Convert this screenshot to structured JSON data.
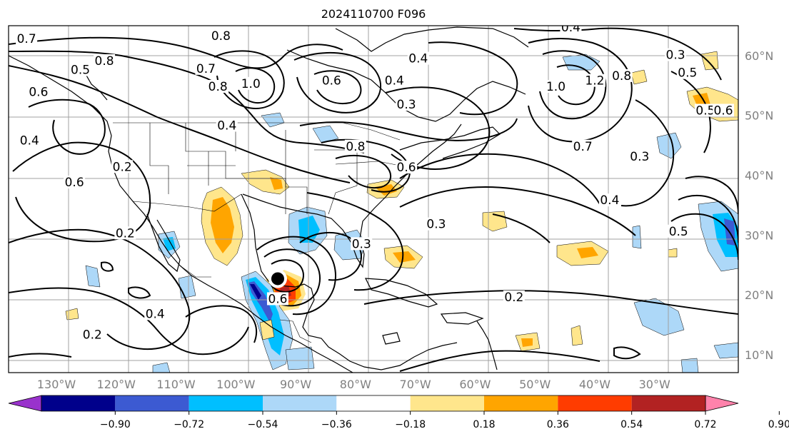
{
  "title": "2024110700 F096",
  "map": {
    "projection": "PlateCarree",
    "lon_range": [
      -138,
      -16
    ],
    "lat_range": [
      7,
      65
    ],
    "longitude_labels": [
      {
        "lon": -130,
        "text": "130°W"
      },
      {
        "lon": -120,
        "text": "120°W"
      },
      {
        "lon": -110,
        "text": "110°W"
      },
      {
        "lon": -100,
        "text": "100°W"
      },
      {
        "lon": -90,
        "text": "90°W"
      },
      {
        "lon": -80,
        "text": "80°W"
      },
      {
        "lon": -70,
        "text": "70°W"
      },
      {
        "lon": -60,
        "text": "60°W"
      },
      {
        "lon": -50,
        "text": "50°W"
      },
      {
        "lon": -40,
        "text": "40°W"
      },
      {
        "lon": -30,
        "text": "30°W"
      }
    ],
    "latitude_labels": [
      {
        "lat": 60,
        "text": "60°N"
      },
      {
        "lat": 50,
        "text": "50°N"
      },
      {
        "lat": 40,
        "text": "40°N"
      },
      {
        "lat": 30,
        "text": "30°N"
      },
      {
        "lat": 20,
        "text": "20°N"
      },
      {
        "lat": 10,
        "text": "10°N"
      }
    ],
    "gridlines": true,
    "storm_marker": {
      "lon": -93,
      "lat": 22.7,
      "color": "#000000"
    },
    "contour_labels": [
      {
        "text": "0.7",
        "lon": -135,
        "lat": 62.5
      },
      {
        "text": "0.8",
        "lon": -122,
        "lat": 58.8
      },
      {
        "text": "0.5",
        "lon": -126,
        "lat": 57.3
      },
      {
        "text": "0.6",
        "lon": -133,
        "lat": 53.6
      },
      {
        "text": "0.4",
        "lon": -134.5,
        "lat": 45.5
      },
      {
        "text": "0.2",
        "lon": -119,
        "lat": 41.1
      },
      {
        "text": "0.6",
        "lon": -127,
        "lat": 38.5
      },
      {
        "text": "0.8",
        "lon": -102.5,
        "lat": 63
      },
      {
        "text": "0.7",
        "lon": -105,
        "lat": 57.5
      },
      {
        "text": "0.8",
        "lon": -103,
        "lat": 54.5
      },
      {
        "text": "0.4",
        "lon": -101.5,
        "lat": 48
      },
      {
        "text": "1.0",
        "lon": -97.5,
        "lat": 55
      },
      {
        "text": "0.6",
        "lon": -84,
        "lat": 55.5
      },
      {
        "text": "0.4",
        "lon": -73.5,
        "lat": 55.5
      },
      {
        "text": "0.3",
        "lon": -71.5,
        "lat": 51.5
      },
      {
        "text": "0.4",
        "lon": -69.5,
        "lat": 59.2
      },
      {
        "text": "0.8",
        "lon": -80,
        "lat": 44.5
      },
      {
        "text": "0.6",
        "lon": -71.5,
        "lat": 41
      },
      {
        "text": "0.3",
        "lon": -79,
        "lat": 28.2
      },
      {
        "text": "0.3",
        "lon": -66.5,
        "lat": 31.5
      },
      {
        "text": "0.2",
        "lon": -53.5,
        "lat": 19.3
      },
      {
        "text": "0.4",
        "lon": -44,
        "lat": 64.4
      },
      {
        "text": "1.0",
        "lon": -46.5,
        "lat": 54.5
      },
      {
        "text": "1.2",
        "lon": -40,
        "lat": 55.5
      },
      {
        "text": "0.7",
        "lon": -42,
        "lat": 44.5
      },
      {
        "text": "0.8",
        "lon": -35.5,
        "lat": 56.3
      },
      {
        "text": "0.3",
        "lon": -26.5,
        "lat": 59.8
      },
      {
        "text": "0.5",
        "lon": -24.5,
        "lat": 56.8
      },
      {
        "text": "0.5",
        "lon": -21.5,
        "lat": 50.5
      },
      {
        "text": "0.6",
        "lon": -18.5,
        "lat": 50.5
      },
      {
        "text": "0.3",
        "lon": -32.5,
        "lat": 42.8
      },
      {
        "text": "0.4",
        "lon": -37.5,
        "lat": 35.5
      },
      {
        "text": "0.5",
        "lon": -26,
        "lat": 30.3
      },
      {
        "text": "0.2",
        "lon": -118.5,
        "lat": 30
      },
      {
        "text": "0.4",
        "lon": -113.5,
        "lat": 16.5
      },
      {
        "text": "0.2",
        "lon": -124,
        "lat": 13
      },
      {
        "text": "0.6",
        "lon": -93,
        "lat": 19
      }
    ]
  },
  "colorbar": {
    "tick_labels": [
      "−0.90",
      "−0.72",
      "−0.54",
      "−0.36",
      "−0.18",
      "0.18",
      "0.36",
      "0.54",
      "0.72",
      "0.90"
    ],
    "colors": [
      "#9932cc",
      "#00008b",
      "#3c5ad2",
      "#00bfff",
      "#add8f8",
      "#ffffff",
      "#ffe68c",
      "#ffa500",
      "#ff3c00",
      "#b22222",
      "#ff82ab"
    ]
  },
  "colors": {
    "gridline": "#a0a0a0",
    "contour": "#000000",
    "coastline": "#000000",
    "label_gray": "#808080"
  }
}
